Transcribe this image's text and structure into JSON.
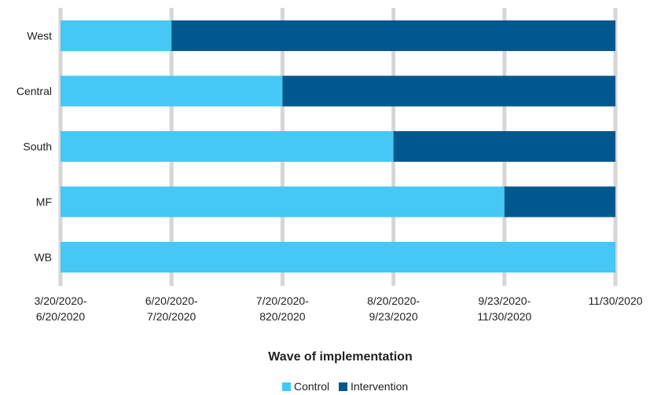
{
  "chart_data": {
    "type": "bar",
    "orientation": "horizontal",
    "stacked": true,
    "title": "",
    "xlabel": "Wave of implementation",
    "ylabel": "",
    "categories": [
      "West",
      "Central",
      "South",
      "MF",
      "WB"
    ],
    "x_ticks": [
      {
        "line1": "3/20/2020-",
        "line2": "6/20/2020"
      },
      {
        "line1": "6/20/2020-",
        "line2": "7/20/2020"
      },
      {
        "line1": "7/20/2020-",
        "line2": "820/2020"
      },
      {
        "line1": "8/20/2020-",
        "line2": "9/23/2020"
      },
      {
        "line1": "9/23/2020-",
        "line2": "11/30/2020"
      },
      {
        "line1": "11/30/2020",
        "line2": ""
      }
    ],
    "xlim": [
      0,
      5
    ],
    "series": [
      {
        "name": "Control",
        "color": "#45C8F5",
        "values": [
          1,
          2,
          3,
          4,
          5
        ]
      },
      {
        "name": "Intervention",
        "color": "#00588F",
        "values": [
          4,
          3,
          2,
          1,
          0
        ]
      }
    ],
    "grid": true,
    "grid_color": "#D6D6D6",
    "legend_position": "bottom"
  }
}
